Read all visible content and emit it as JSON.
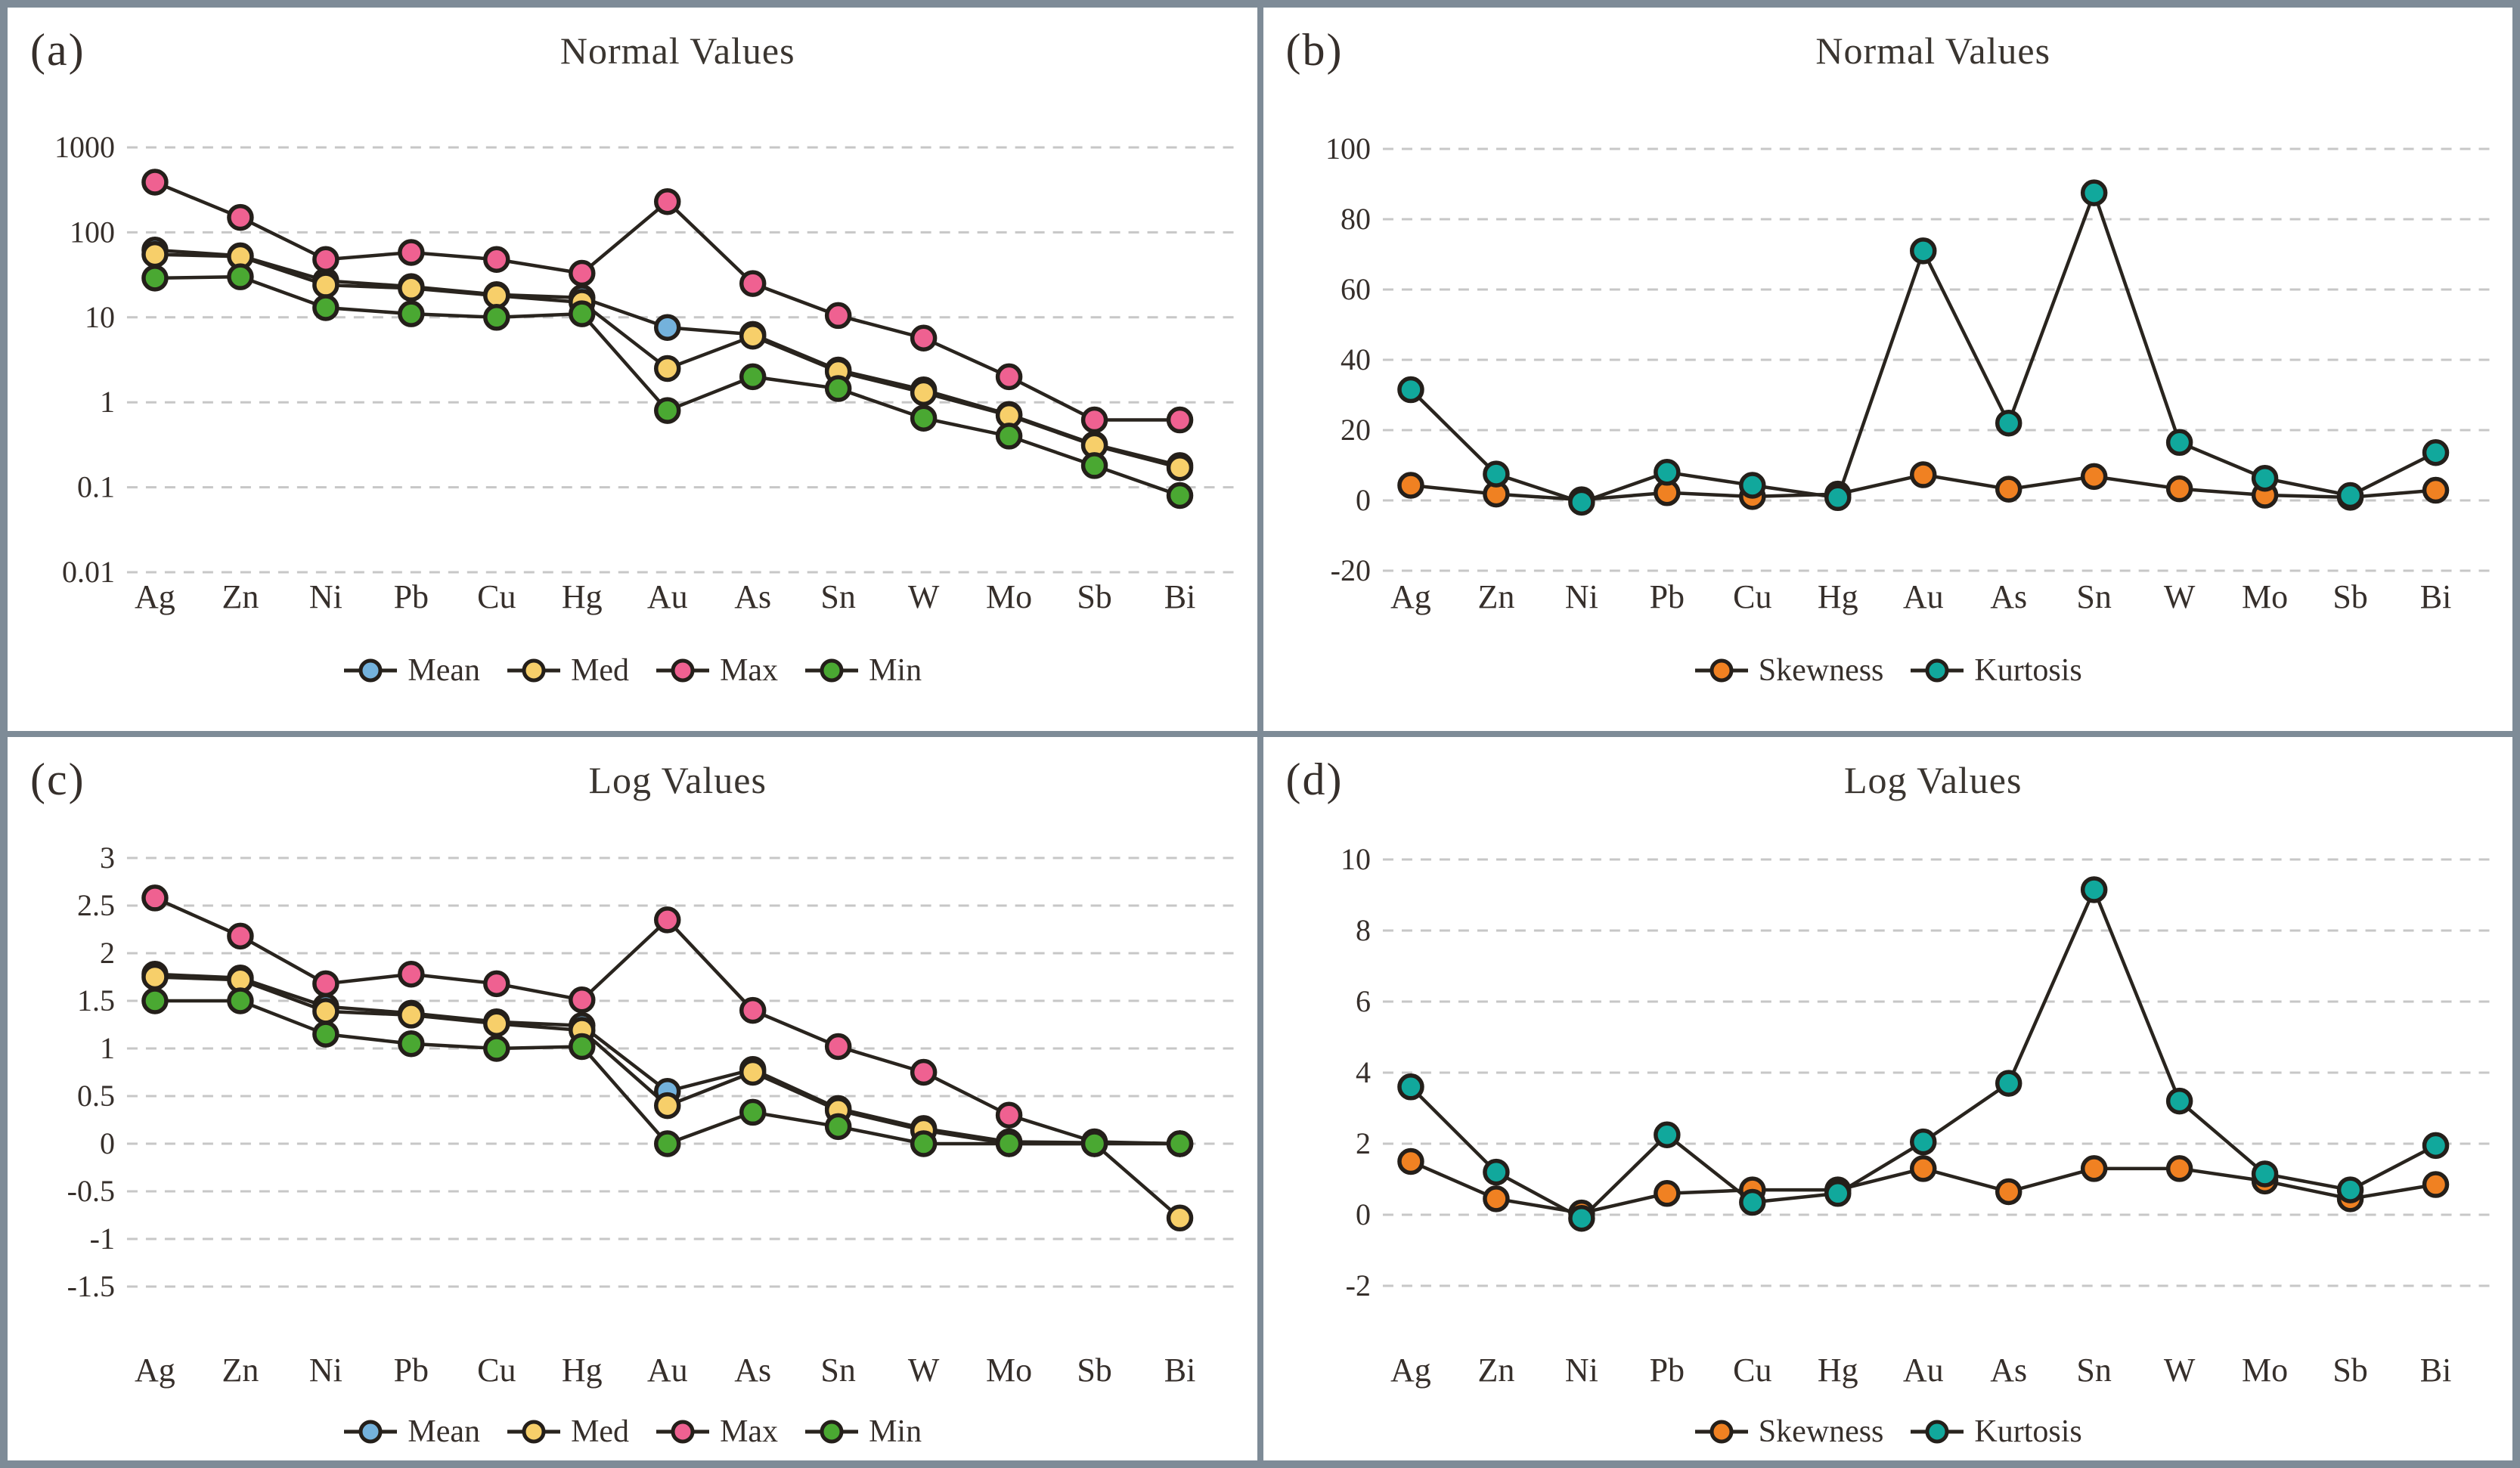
{
  "figure": {
    "frame_color": "#7e8b97",
    "grid_color": "#c7c7c7",
    "line_color": "#29241e",
    "marker_ring_color": "#241f1a",
    "text_color": "#362f2b"
  },
  "chart_data": [
    {
      "panel": "(a)",
      "type": "line",
      "title": "Normal Values",
      "grid": "dashed-horizontal",
      "legend_position": "bottom",
      "y_axis": {
        "scale": "log",
        "ticks": [
          "1000",
          "100",
          "10",
          "1",
          "0.1",
          "0.01"
        ],
        "tick_values": [
          1000,
          100,
          10,
          1,
          0.1,
          0.01
        ]
      },
      "categories": [
        "Ag",
        "Zn",
        "Ni",
        "Pb",
        "Cu",
        "Hg",
        "Au",
        "As",
        "Sn",
        "W",
        "Mo",
        "Sb",
        "Bi"
      ],
      "series": [
        {
          "name": "Mean",
          "color": "#74b2dc",
          "values": [
            62,
            53,
            27,
            23,
            18.5,
            17,
            7.6,
            6.3,
            2.4,
            1.4,
            0.72,
            0.32,
            0.18
          ]
        },
        {
          "name": "Med",
          "color": "#f7cf6a",
          "values": [
            55,
            52,
            24,
            22,
            18,
            15,
            2.5,
            6.0,
            2.3,
            1.3,
            0.7,
            0.31,
            0.17
          ]
        },
        {
          "name": "Max",
          "color": "#ef6191",
          "values": [
            390,
            150,
            48,
            58,
            48,
            33,
            230,
            25,
            10.5,
            5.7,
            2.0,
            0.62,
            0.62
          ]
        },
        {
          "name": "Min",
          "color": "#4aa832",
          "values": [
            29,
            30,
            13,
            11,
            10,
            11,
            0.8,
            2.0,
            1.45,
            0.65,
            0.4,
            0.18,
            0.08
          ]
        }
      ]
    },
    {
      "panel": "(b)",
      "type": "line",
      "title": "Normal Values",
      "grid": "dashed-horizontal",
      "legend_position": "bottom",
      "y_axis": {
        "scale": "linear",
        "ticks": [
          "100",
          "80",
          "60",
          "40",
          "20",
          "0",
          "-20"
        ],
        "tick_values": [
          100,
          80,
          60,
          40,
          20,
          0,
          -20
        ]
      },
      "categories": [
        "Ag",
        "Zn",
        "Ni",
        "Pb",
        "Cu",
        "Hg",
        "Au",
        "As",
        "Sn",
        "W",
        "Mo",
        "Sb",
        "Bi"
      ],
      "series": [
        {
          "name": "Skewness",
          "color": "#f08122",
          "values": [
            4.3,
            1.8,
            0.2,
            2.2,
            1.1,
            1.8,
            7.3,
            3.2,
            6.8,
            3.3,
            1.5,
            0.9,
            2.9
          ]
        },
        {
          "name": "Kurtosis",
          "color": "#11a89c",
          "values": [
            31.5,
            7.5,
            -0.5,
            8.0,
            4.3,
            0.8,
            71,
            22,
            87.5,
            16.5,
            6.3,
            1.4,
            13.6
          ]
        }
      ]
    },
    {
      "panel": "(c)",
      "type": "line",
      "title": "Log Values",
      "grid": "dashed-horizontal",
      "legend_position": "bottom",
      "y_axis": {
        "scale": "linear",
        "ticks": [
          "3",
          "2.5",
          "2",
          "1.5",
          "1",
          "0.5",
          "0",
          "-0.5",
          "-1",
          "-1.5"
        ],
        "tick_values": [
          3,
          2.5,
          2,
          1.5,
          1,
          0.5,
          0,
          -0.5,
          -1,
          -1.5
        ]
      },
      "categories": [
        "Ag",
        "Zn",
        "Ni",
        "Pb",
        "Cu",
        "Hg",
        "Au",
        "As",
        "Sn",
        "W",
        "Mo",
        "Sb",
        "Bi"
      ],
      "series": [
        {
          "name": "Mean",
          "color": "#74b2dc",
          "values": [
            1.78,
            1.74,
            1.44,
            1.37,
            1.28,
            1.24,
            0.55,
            0.78,
            0.37,
            0.16,
            0.02,
            0.01,
            0.0
          ]
        },
        {
          "name": "Med",
          "color": "#f7cf6a",
          "values": [
            1.75,
            1.72,
            1.39,
            1.35,
            1.26,
            1.19,
            0.4,
            0.75,
            0.35,
            0.14,
            0.0,
            0.0,
            -0.78
          ]
        },
        {
          "name": "Max",
          "color": "#ef6191",
          "values": [
            2.58,
            2.18,
            1.68,
            1.78,
            1.68,
            1.51,
            2.35,
            1.4,
            1.02,
            0.75,
            0.3,
            0.02,
            0.0
          ]
        },
        {
          "name": "Min",
          "color": "#4aa832",
          "values": [
            1.5,
            1.5,
            1.15,
            1.05,
            1.0,
            1.02,
            0.0,
            0.33,
            0.18,
            0.0,
            0.0,
            0.0,
            0.0
          ]
        }
      ]
    },
    {
      "panel": "(d)",
      "type": "line",
      "title": "Log Values",
      "grid": "dashed-horizontal",
      "legend_position": "bottom",
      "y_axis": {
        "scale": "linear",
        "ticks": [
          "10",
          "8",
          "6",
          "4",
          "2",
          "0",
          "-2"
        ],
        "tick_values": [
          10,
          8,
          6,
          4,
          2,
          0,
          -2
        ]
      },
      "categories": [
        "Ag",
        "Zn",
        "Ni",
        "Pb",
        "Cu",
        "Hg",
        "Au",
        "As",
        "Sn",
        "W",
        "Mo",
        "Sb",
        "Bi"
      ],
      "series": [
        {
          "name": "Skewness",
          "color": "#f08122",
          "values": [
            1.5,
            0.45,
            0.05,
            0.6,
            0.7,
            0.7,
            1.3,
            0.65,
            1.3,
            1.3,
            0.95,
            0.45,
            0.85
          ]
        },
        {
          "name": "Kurtosis",
          "color": "#11a89c",
          "values": [
            3.6,
            1.2,
            -0.1,
            2.25,
            0.35,
            0.6,
            2.05,
            3.7,
            9.15,
            3.2,
            1.15,
            0.7,
            1.95
          ]
        }
      ]
    }
  ]
}
